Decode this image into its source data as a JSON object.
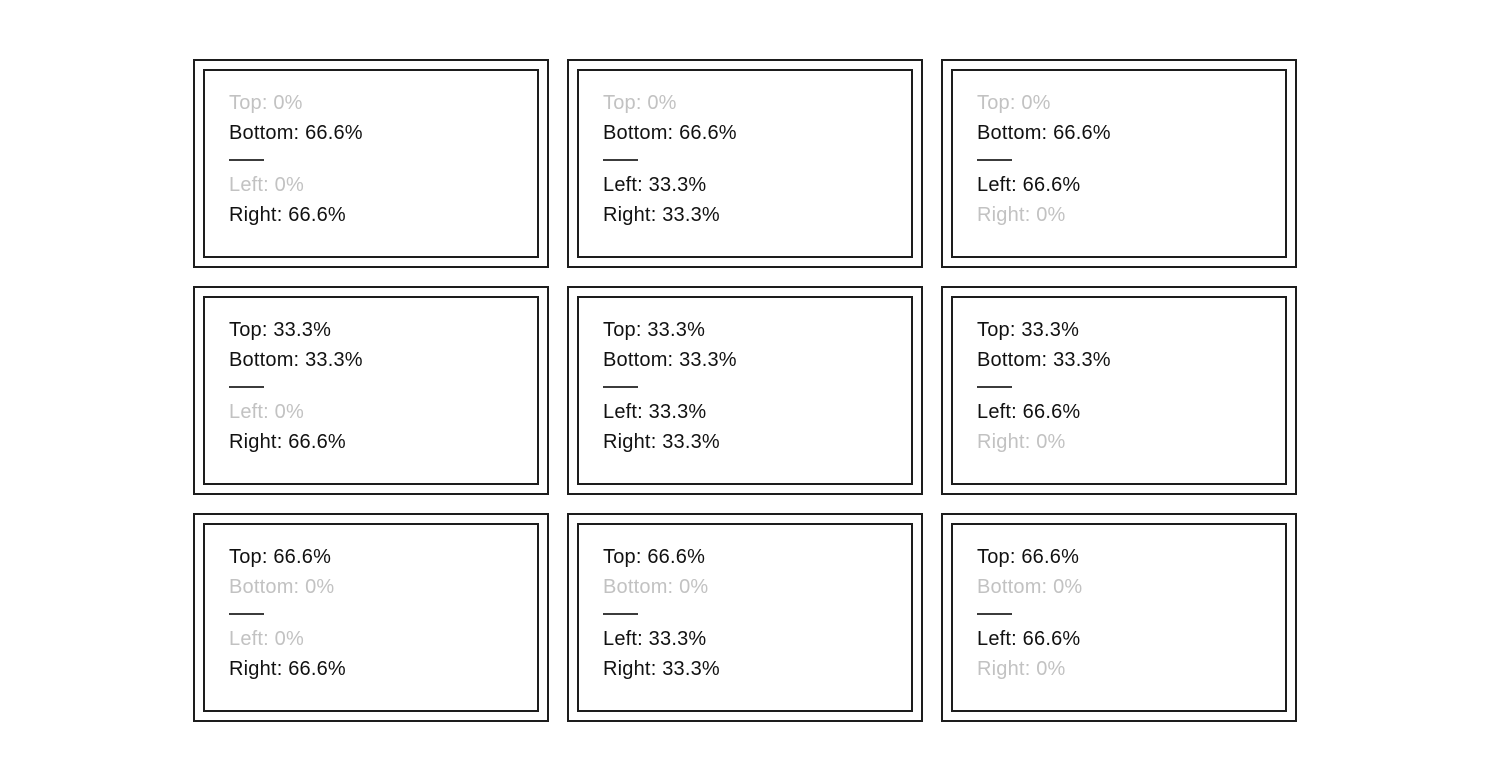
{
  "colors": {
    "background": "#ffffff",
    "border": "#1d1d1d",
    "text": "#111111",
    "muted_text": "#c2c2c2",
    "divider": "#3c3c3c"
  },
  "grid": {
    "rows": 3,
    "columns": 3,
    "cells": [
      {
        "top": {
          "text": "Top: 0%",
          "muted": true
        },
        "bottom": {
          "text": "Bottom: 66.6%",
          "muted": false
        },
        "left": {
          "text": "Left: 0%",
          "muted": true
        },
        "right": {
          "text": "Right: 66.6%",
          "muted": false
        }
      },
      {
        "top": {
          "text": "Top: 0%",
          "muted": true
        },
        "bottom": {
          "text": "Bottom: 66.6%",
          "muted": false
        },
        "left": {
          "text": "Left: 33.3%",
          "muted": false
        },
        "right": {
          "text": "Right: 33.3%",
          "muted": false
        }
      },
      {
        "top": {
          "text": "Top: 0%",
          "muted": true
        },
        "bottom": {
          "text": "Bottom: 66.6%",
          "muted": false
        },
        "left": {
          "text": "Left: 66.6%",
          "muted": false
        },
        "right": {
          "text": "Right: 0%",
          "muted": true
        }
      },
      {
        "top": {
          "text": "Top: 33.3%",
          "muted": false
        },
        "bottom": {
          "text": "Bottom: 33.3%",
          "muted": false
        },
        "left": {
          "text": "Left: 0%",
          "muted": true
        },
        "right": {
          "text": "Right: 66.6%",
          "muted": false
        }
      },
      {
        "top": {
          "text": "Top: 33.3%",
          "muted": false
        },
        "bottom": {
          "text": "Bottom: 33.3%",
          "muted": false
        },
        "left": {
          "text": "Left: 33.3%",
          "muted": false
        },
        "right": {
          "text": "Right: 33.3%",
          "muted": false
        }
      },
      {
        "top": {
          "text": "Top: 33.3%",
          "muted": false
        },
        "bottom": {
          "text": "Bottom: 33.3%",
          "muted": false
        },
        "left": {
          "text": "Left: 66.6%",
          "muted": false
        },
        "right": {
          "text": "Right: 0%",
          "muted": true
        }
      },
      {
        "top": {
          "text": "Top: 66.6%",
          "muted": false
        },
        "bottom": {
          "text": "Bottom: 0%",
          "muted": true
        },
        "left": {
          "text": "Left: 0%",
          "muted": true
        },
        "right": {
          "text": "Right: 66.6%",
          "muted": false
        }
      },
      {
        "top": {
          "text": "Top: 66.6%",
          "muted": false
        },
        "bottom": {
          "text": "Bottom: 0%",
          "muted": true
        },
        "left": {
          "text": "Left: 33.3%",
          "muted": false
        },
        "right": {
          "text": "Right: 33.3%",
          "muted": false
        }
      },
      {
        "top": {
          "text": "Top: 66.6%",
          "muted": false
        },
        "bottom": {
          "text": "Bottom: 0%",
          "muted": true
        },
        "left": {
          "text": "Left: 66.6%",
          "muted": false
        },
        "right": {
          "text": "Right: 0%",
          "muted": true
        }
      }
    ]
  }
}
